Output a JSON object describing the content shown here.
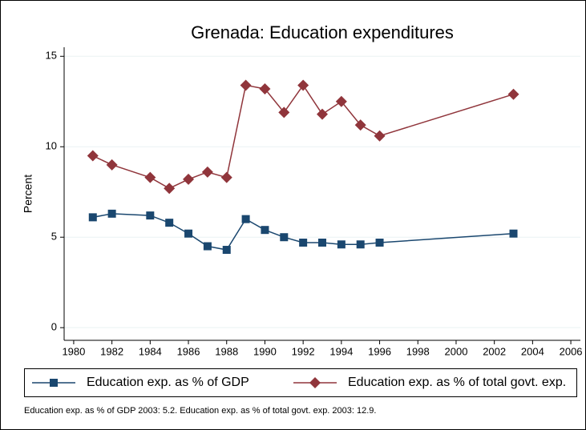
{
  "chart_data": {
    "type": "line",
    "title": "Grenada: Education expenditures",
    "y_label": "Percent",
    "x": [
      1981,
      1982,
      1984,
      1985,
      1986,
      1987,
      1988,
      1989,
      1990,
      1991,
      1992,
      1993,
      1994,
      1995,
      1996,
      2003
    ],
    "series": [
      {
        "name": "Education exp. as % of GDP",
        "color": "#1a476f",
        "marker": "square",
        "values": [
          6.1,
          6.3,
          6.2,
          5.8,
          5.2,
          4.5,
          4.3,
          6.0,
          5.4,
          5.0,
          4.7,
          4.7,
          4.6,
          4.6,
          4.7,
          5.2
        ]
      },
      {
        "name": "Education exp. as % of total govt. exp.",
        "color": "#90353b",
        "marker": "diamond",
        "values": [
          9.5,
          9.0,
          8.3,
          7.7,
          8.2,
          8.6,
          8.3,
          13.4,
          13.2,
          11.9,
          13.4,
          11.8,
          12.5,
          11.2,
          10.6,
          12.9
        ]
      }
    ],
    "xlim": [
      1979.5,
      2006.5
    ],
    "xticks": [
      1980,
      1982,
      1984,
      1986,
      1988,
      1990,
      1992,
      1994,
      1996,
      1998,
      2000,
      2002,
      2004,
      2006
    ],
    "ylim": [
      -0.7,
      15.5
    ],
    "yticks": [
      0,
      5,
      10,
      15
    ],
    "grid": true,
    "legend": "bottom",
    "note": "Education exp. as % of GDP 2003: 5.2. Education exp. as % of total govt. exp. 2003: 12.9."
  }
}
